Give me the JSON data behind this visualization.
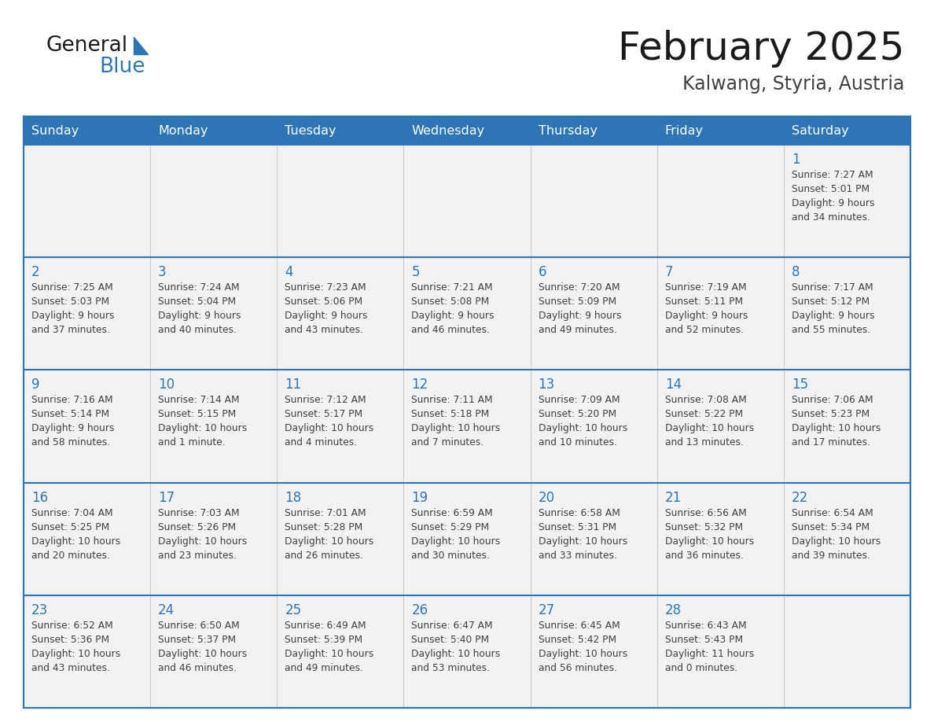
{
  "title": "February 2025",
  "subtitle": "Kalwang, Styria, Austria",
  "days_of_week": [
    "Sunday",
    "Monday",
    "Tuesday",
    "Wednesday",
    "Thursday",
    "Friday",
    "Saturday"
  ],
  "header_bg": "#2E75B6",
  "header_text": "#FFFFFF",
  "cell_bg_light": "#F2F2F2",
  "cell_bg_white": "#FFFFFF",
  "border_color": "#2E75B6",
  "day_num_color": "#2E75B6",
  "text_color": "#404040",
  "logo_color_general": "#1a1a1a",
  "logo_color_blue": "#2E75B6",
  "calendar_data": [
    [
      null,
      null,
      null,
      null,
      null,
      null,
      {
        "day": "1",
        "sunrise": "7:27 AM",
        "sunset": "5:01 PM",
        "daylight": "9 hours",
        "daylight2": "and 34 minutes."
      }
    ],
    [
      {
        "day": "2",
        "sunrise": "7:25 AM",
        "sunset": "5:03 PM",
        "daylight": "9 hours",
        "daylight2": "and 37 minutes."
      },
      {
        "day": "3",
        "sunrise": "7:24 AM",
        "sunset": "5:04 PM",
        "daylight": "9 hours",
        "daylight2": "and 40 minutes."
      },
      {
        "day": "4",
        "sunrise": "7:23 AM",
        "sunset": "5:06 PM",
        "daylight": "9 hours",
        "daylight2": "and 43 minutes."
      },
      {
        "day": "5",
        "sunrise": "7:21 AM",
        "sunset": "5:08 PM",
        "daylight": "9 hours",
        "daylight2": "and 46 minutes."
      },
      {
        "day": "6",
        "sunrise": "7:20 AM",
        "sunset": "5:09 PM",
        "daylight": "9 hours",
        "daylight2": "and 49 minutes."
      },
      {
        "day": "7",
        "sunrise": "7:19 AM",
        "sunset": "5:11 PM",
        "daylight": "9 hours",
        "daylight2": "and 52 minutes."
      },
      {
        "day": "8",
        "sunrise": "7:17 AM",
        "sunset": "5:12 PM",
        "daylight": "9 hours",
        "daylight2": "and 55 minutes."
      }
    ],
    [
      {
        "day": "9",
        "sunrise": "7:16 AM",
        "sunset": "5:14 PM",
        "daylight": "9 hours",
        "daylight2": "and 58 minutes."
      },
      {
        "day": "10",
        "sunrise": "7:14 AM",
        "sunset": "5:15 PM",
        "daylight": "10 hours",
        "daylight2": "and 1 minute."
      },
      {
        "day": "11",
        "sunrise": "7:12 AM",
        "sunset": "5:17 PM",
        "daylight": "10 hours",
        "daylight2": "and 4 minutes."
      },
      {
        "day": "12",
        "sunrise": "7:11 AM",
        "sunset": "5:18 PM",
        "daylight": "10 hours",
        "daylight2": "and 7 minutes."
      },
      {
        "day": "13",
        "sunrise": "7:09 AM",
        "sunset": "5:20 PM",
        "daylight": "10 hours",
        "daylight2": "and 10 minutes."
      },
      {
        "day": "14",
        "sunrise": "7:08 AM",
        "sunset": "5:22 PM",
        "daylight": "10 hours",
        "daylight2": "and 13 minutes."
      },
      {
        "day": "15",
        "sunrise": "7:06 AM",
        "sunset": "5:23 PM",
        "daylight": "10 hours",
        "daylight2": "and 17 minutes."
      }
    ],
    [
      {
        "day": "16",
        "sunrise": "7:04 AM",
        "sunset": "5:25 PM",
        "daylight": "10 hours",
        "daylight2": "and 20 minutes."
      },
      {
        "day": "17",
        "sunrise": "7:03 AM",
        "sunset": "5:26 PM",
        "daylight": "10 hours",
        "daylight2": "and 23 minutes."
      },
      {
        "day": "18",
        "sunrise": "7:01 AM",
        "sunset": "5:28 PM",
        "daylight": "10 hours",
        "daylight2": "and 26 minutes."
      },
      {
        "day": "19",
        "sunrise": "6:59 AM",
        "sunset": "5:29 PM",
        "daylight": "10 hours",
        "daylight2": "and 30 minutes."
      },
      {
        "day": "20",
        "sunrise": "6:58 AM",
        "sunset": "5:31 PM",
        "daylight": "10 hours",
        "daylight2": "and 33 minutes."
      },
      {
        "day": "21",
        "sunrise": "6:56 AM",
        "sunset": "5:32 PM",
        "daylight": "10 hours",
        "daylight2": "and 36 minutes."
      },
      {
        "day": "22",
        "sunrise": "6:54 AM",
        "sunset": "5:34 PM",
        "daylight": "10 hours",
        "daylight2": "and 39 minutes."
      }
    ],
    [
      {
        "day": "23",
        "sunrise": "6:52 AM",
        "sunset": "5:36 PM",
        "daylight": "10 hours",
        "daylight2": "and 43 minutes."
      },
      {
        "day": "24",
        "sunrise": "6:50 AM",
        "sunset": "5:37 PM",
        "daylight": "10 hours",
        "daylight2": "and 46 minutes."
      },
      {
        "day": "25",
        "sunrise": "6:49 AM",
        "sunset": "5:39 PM",
        "daylight": "10 hours",
        "daylight2": "and 49 minutes."
      },
      {
        "day": "26",
        "sunrise": "6:47 AM",
        "sunset": "5:40 PM",
        "daylight": "10 hours",
        "daylight2": "and 53 minutes."
      },
      {
        "day": "27",
        "sunrise": "6:45 AM",
        "sunset": "5:42 PM",
        "daylight": "10 hours",
        "daylight2": "and 56 minutes."
      },
      {
        "day": "28",
        "sunrise": "6:43 AM",
        "sunset": "5:43 PM",
        "daylight": "11 hours",
        "daylight2": "and 0 minutes."
      },
      null
    ]
  ]
}
